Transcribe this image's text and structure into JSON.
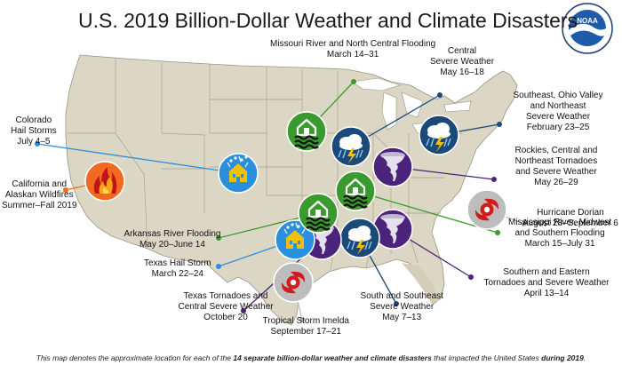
{
  "title": "U.S. 2019 Billion-Dollar Weather and Climate Disasters",
  "logo": {
    "text": "NOAA",
    "ring_text": "NATIONAL OCEANIC AND ATMOSPHERIC ADMINISTRATION · U.S. DEPARTMENT OF COMMERCE"
  },
  "colors": {
    "flood": "#3a9a2e",
    "severe": "#1b4a7a",
    "tornado": "#4b237a",
    "hail": "#2b8fe0",
    "wildfire": "#f26a21",
    "tropical": "#bdbdbd",
    "land": "#dcd6c4",
    "water": "#ffffff"
  },
  "events": [
    {
      "id": "missouri",
      "type": "flood",
      "icon": "flood-icon",
      "lines": [
        "Missouri River and North Central Flooding",
        "March 14–31"
      ]
    },
    {
      "id": "central",
      "type": "severe",
      "icon": "storm-cloud-icon",
      "lines": [
        "Central",
        "Severe Weather",
        "May 16–18"
      ]
    },
    {
      "id": "southeast-ohio",
      "type": "severe",
      "icon": "storm-cloud-icon",
      "lines": [
        "Southeast, Ohio Valley",
        "and Northeast",
        "Severe Weather",
        "February 23–25"
      ]
    },
    {
      "id": "rockies",
      "type": "tornado",
      "icon": "tornado-icon",
      "lines": [
        "Rockies, Central and",
        "Northeast Tornadoes",
        "and Severe Weather",
        "May 26–29"
      ]
    },
    {
      "id": "dorian",
      "type": "tropical",
      "icon": "hurricane-icon",
      "lines": [
        "Hurricane Dorian",
        "August 28–September 6"
      ]
    },
    {
      "id": "mississippi",
      "type": "flood",
      "icon": "flood-icon",
      "lines": [
        "Mississippi River, Midwest",
        "and Southern Flooding",
        "March 15–July 31"
      ]
    },
    {
      "id": "se-tornado",
      "type": "tornado",
      "icon": "tornado-icon",
      "lines": [
        "Southern and Eastern",
        "Tornadoes and Severe Weather",
        "April 13–14"
      ]
    },
    {
      "id": "ss-severe",
      "type": "severe",
      "icon": "storm-cloud-icon",
      "lines": [
        "South and Southeast",
        "Severe Weather",
        "May 7–13"
      ]
    },
    {
      "id": "imelda",
      "type": "tropical",
      "icon": "hurricane-icon",
      "lines": [
        "Tropical Storm Imelda",
        "September 17–21"
      ]
    },
    {
      "id": "tx-tornado",
      "type": "tornado",
      "icon": "tornado-icon",
      "lines": [
        "Texas Tornadoes and",
        "Central Severe Weather",
        "October 20"
      ]
    },
    {
      "id": "tx-hail",
      "type": "hail",
      "icon": "hail-house-icon",
      "lines": [
        "Texas Hail Storm",
        "March 22–24"
      ]
    },
    {
      "id": "arkansas",
      "type": "flood",
      "icon": "flood-icon",
      "lines": [
        "Arkansas River Flooding",
        "May 20–June 14"
      ]
    },
    {
      "id": "ca-fire",
      "type": "wildfire",
      "icon": "wildfire-icon",
      "lines": [
        "California and",
        "Alaskan Wildfires",
        "Summer–Fall 2019"
      ]
    },
    {
      "id": "co-hail",
      "type": "hail",
      "icon": "hail-house-icon",
      "lines": [
        "Colorado",
        "Hail Storms",
        "July 4–5"
      ]
    }
  ],
  "footnote": {
    "pre": "This map denotes the approximate location for each of the ",
    "bold1": "14 separate billion-dollar weather and climate disasters",
    "mid": " that impacted the United States ",
    "bold2": "during 2019",
    "post": "."
  }
}
